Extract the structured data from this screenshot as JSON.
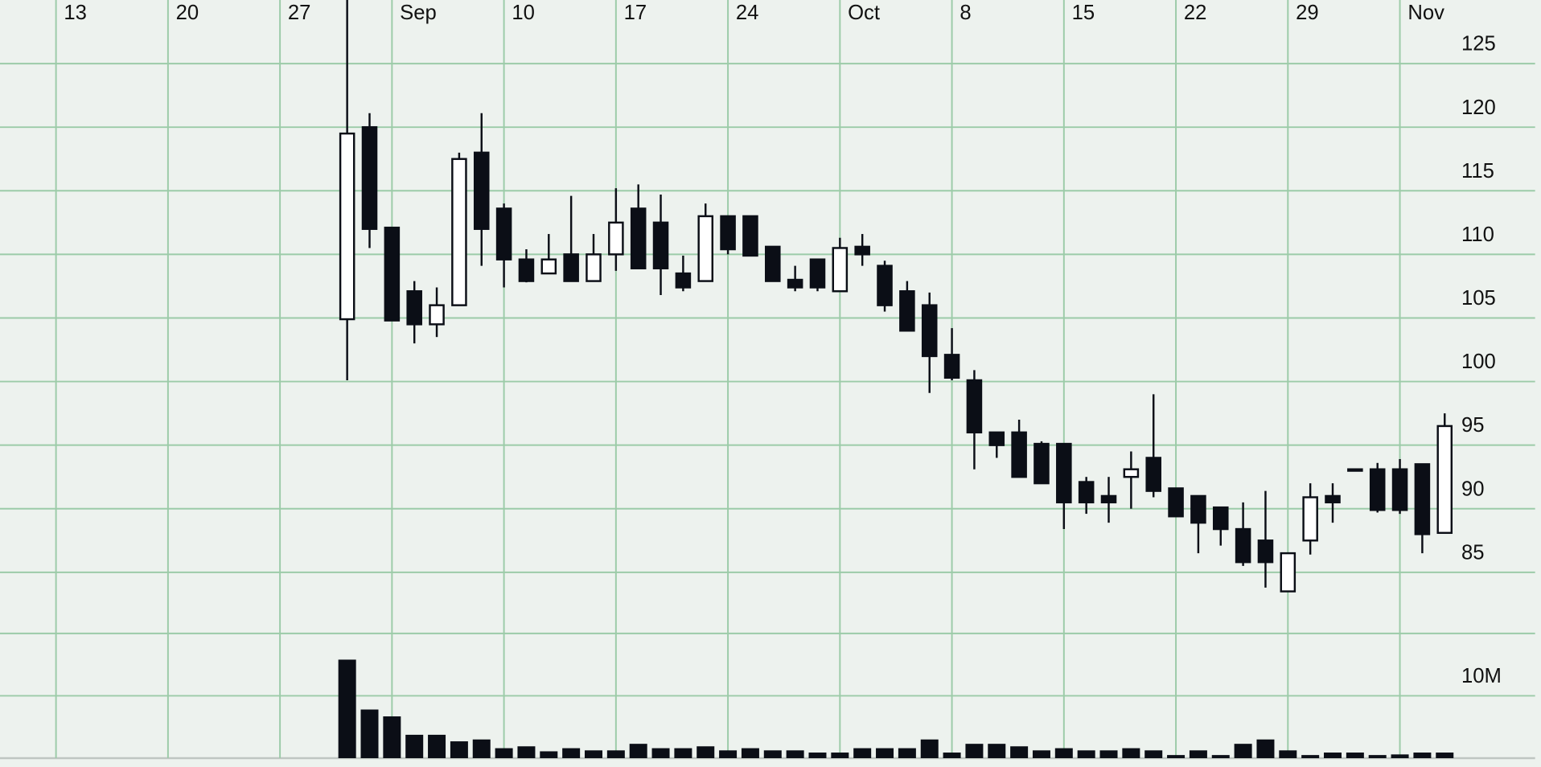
{
  "chart_data": [
    {
      "type": "candlestick",
      "x": [
        13,
        14,
        15,
        16,
        17,
        18,
        19,
        20,
        21,
        22,
        23,
        24,
        25,
        26,
        27,
        28,
        29,
        30,
        31,
        32,
        33,
        34,
        35,
        36,
        37,
        38,
        39,
        40,
        41,
        42,
        43,
        44,
        45,
        46,
        47,
        48,
        49,
        50,
        51,
        52,
        53,
        54,
        55,
        56,
        57,
        58,
        59,
        60,
        61,
        62
      ],
      "open": [
        104.9,
        120.0,
        112.1,
        107.1,
        104.5,
        106.0,
        118.0,
        113.6,
        109.6,
        108.5,
        110.0,
        107.9,
        110.0,
        113.6,
        112.5,
        108.5,
        107.9,
        113.0,
        113.0,
        110.6,
        108.0,
        109.6,
        107.1,
        110.6,
        109.1,
        107.1,
        106.0,
        102.1,
        100.1,
        96.0,
        96.0,
        95.1,
        95.1,
        92.1,
        91.0,
        92.5,
        94.0,
        91.6,
        91.0,
        90.1,
        88.4,
        87.5,
        83.5,
        87.5,
        91.0,
        93.1,
        93.1,
        93.1,
        93.5,
        88.1
      ],
      "high": [
        130.0,
        121.1,
        112.1,
        107.9,
        107.4,
        118.0,
        121.1,
        114.0,
        110.4,
        111.6,
        114.6,
        111.6,
        115.2,
        115.5,
        114.7,
        109.9,
        114.0,
        113.0,
        113.0,
        110.6,
        109.1,
        109.6,
        111.3,
        111.6,
        109.5,
        107.9,
        107.0,
        104.2,
        100.9,
        96.0,
        97.0,
        95.3,
        95.1,
        92.5,
        92.5,
        94.5,
        99.0,
        91.6,
        91.0,
        90.1,
        90.5,
        91.4,
        86.5,
        92.0,
        92.0,
        93.1,
        93.6,
        93.9,
        93.5,
        97.5
      ],
      "low": [
        100.1,
        110.5,
        104.8,
        103.0,
        103.5,
        106.0,
        109.1,
        107.4,
        107.8,
        108.5,
        107.9,
        107.9,
        108.7,
        108.9,
        106.8,
        107.1,
        107.9,
        110.0,
        109.9,
        107.9,
        107.1,
        107.1,
        107.1,
        109.1,
        105.5,
        104.0,
        99.1,
        100.1,
        93.1,
        94.0,
        92.5,
        92.0,
        88.4,
        89.6,
        88.9,
        90.0,
        90.9,
        89.4,
        86.5,
        87.1,
        85.5,
        83.8,
        83.5,
        86.4,
        88.9,
        93.1,
        89.7,
        89.6,
        86.5,
        88.1
      ],
      "close": [
        119.5,
        112.0,
        104.8,
        104.5,
        106.0,
        117.5,
        112.0,
        109.6,
        107.9,
        109.6,
        107.9,
        110.0,
        112.5,
        108.9,
        108.9,
        107.4,
        113.0,
        110.4,
        109.9,
        107.9,
        107.4,
        107.4,
        110.5,
        110.0,
        106.0,
        104.0,
        102.0,
        100.3,
        96.0,
        95.0,
        92.5,
        92.0,
        90.5,
        90.5,
        90.5,
        93.1,
        91.4,
        89.4,
        88.9,
        88.4,
        85.8,
        85.8,
        86.5,
        90.9,
        90.5,
        93.1,
        89.9,
        89.9,
        88.0,
        96.5
      ],
      "xlim": [
        -2.5,
        66.3
      ],
      "xticks": [
        {
          "value": 0,
          "label": "13"
        },
        {
          "value": 5,
          "label": "20"
        },
        {
          "value": 10,
          "label": "27"
        },
        {
          "value": 15,
          "label": "Sep"
        },
        {
          "value": 20,
          "label": "10"
        },
        {
          "value": 25,
          "label": "17"
        },
        {
          "value": 30,
          "label": "24"
        },
        {
          "value": 35,
          "label": "Oct"
        },
        {
          "value": 40,
          "label": "8"
        },
        {
          "value": 45,
          "label": "15"
        },
        {
          "value": 50,
          "label": "22"
        },
        {
          "value": 55,
          "label": "29"
        },
        {
          "value": 60,
          "label": "Nov"
        }
      ],
      "ylim": [
        80,
        130
      ],
      "yticks": [
        85,
        90,
        95,
        100,
        105,
        110,
        115,
        120,
        125
      ],
      "up_color": "#ffffff",
      "down_color": "#0b0e16",
      "grid": true
    },
    {
      "type": "bar",
      "x": [
        13,
        14,
        15,
        16,
        17,
        18,
        19,
        20,
        21,
        22,
        23,
        24,
        25,
        26,
        27,
        28,
        29,
        30,
        31,
        32,
        33,
        34,
        35,
        36,
        37,
        38,
        39,
        40,
        41,
        42,
        43,
        44,
        45,
        46,
        47,
        48,
        49,
        50,
        51,
        52,
        53,
        54,
        55,
        56,
        57,
        58,
        59,
        60,
        61,
        62
      ],
      "values": [
        15800000,
        7800000,
        6700000,
        3750000,
        3750000,
        2700000,
        3000000,
        1600000,
        1900000,
        1100000,
        1600000,
        1250000,
        1250000,
        2300000,
        1600000,
        1600000,
        1900000,
        1250000,
        1600000,
        1250000,
        1250000,
        900000,
        900000,
        1600000,
        1600000,
        1600000,
        3000000,
        900000,
        2300000,
        2300000,
        1900000,
        1250000,
        1600000,
        1250000,
        1250000,
        1600000,
        1250000,
        500000,
        1250000,
        500000,
        2300000,
        3000000,
        1250000,
        500000,
        900000,
        900000,
        500000,
        600000,
        900000,
        900000
      ],
      "ylim": [
        0,
        20000000
      ],
      "yticks": [
        {
          "value": 10000000,
          "label": "10M"
        }
      ],
      "color": "#0b0e16"
    }
  ]
}
